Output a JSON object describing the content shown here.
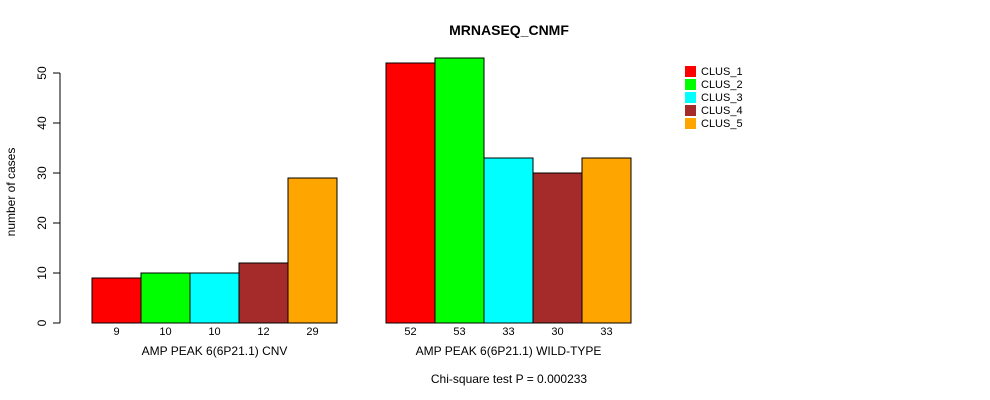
{
  "chart_data": {
    "type": "bar",
    "title": "MRNASEQ_CNMF",
    "ylabel": "number of cases",
    "ylim": [
      0,
      50
    ],
    "yticks": [
      0,
      10,
      20,
      30,
      40,
      50
    ],
    "groups": [
      "AMP PEAK  6(6P21.1) CNV",
      "AMP PEAK  6(6P21.1) WILD-TYPE"
    ],
    "series": [
      {
        "name": "CLUS_1",
        "color": "#ff0000",
        "values": [
          9,
          52
        ]
      },
      {
        "name": "CLUS_2",
        "color": "#00ff00",
        "values": [
          10,
          53
        ]
      },
      {
        "name": "CLUS_3",
        "color": "#00ffff",
        "values": [
          10,
          33
        ]
      },
      {
        "name": "CLUS_4",
        "color": "#a52a2a",
        "values": [
          12,
          30
        ]
      },
      {
        "name": "CLUS_5",
        "color": "#ffa500",
        "values": [
          29,
          33
        ]
      }
    ],
    "legend_position": "top-right",
    "grid": false,
    "footnote": "Chi-square test P = 0.000233"
  }
}
